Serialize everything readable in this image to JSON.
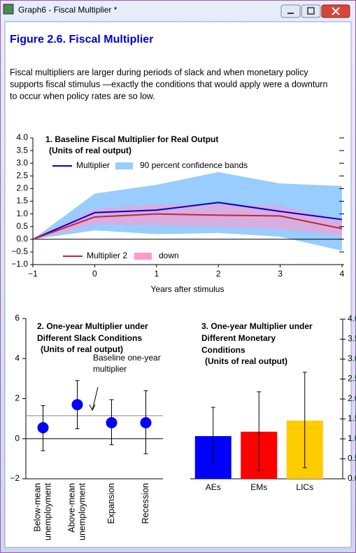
{
  "window": {
    "title": "Graph6 - Fiscal Multiplier *"
  },
  "figure": {
    "title": "Figure 2.6. Fiscal Multiplier",
    "text": [
      "Fiscal multipliers are larger during periods of slack and when monetary policy",
      "supports fiscal stimulus —exactly the conditions that would apply were a downturn",
      "to occur when policy rates are so low."
    ]
  },
  "chart_data": [
    {
      "type": "line",
      "title": "1. Baseline Fiscal Multiplier for Real Output",
      "subtitle": "(Units of real output)",
      "xlabel": "Years after stimulus",
      "x": [
        -1,
        0,
        1,
        2,
        3,
        4
      ],
      "xlim": [
        -1,
        4
      ],
      "xticks": [
        {
          "value": -1,
          "label": "−1"
        },
        0,
        1,
        2,
        3,
        4
      ],
      "ylim": [
        -1,
        4
      ],
      "yticks": [
        {
          "value": 4,
          "label": "4.0"
        },
        {
          "value": 3.5,
          "label": "3.5"
        },
        {
          "value": 3,
          "label": "3.0"
        },
        {
          "value": 2.5,
          "label": "2.5"
        },
        {
          "value": 2,
          "label": "2.0"
        },
        {
          "value": 1.5,
          "label": "1.5"
        },
        {
          "value": 1,
          "label": "1.0"
        },
        {
          "value": 0.5,
          "label": "0.5"
        },
        {
          "value": 0,
          "label": "0.0"
        },
        {
          "value": -0.5,
          "label": "−0.5"
        },
        {
          "value": -1,
          "label": "−1.0"
        }
      ],
      "series": [
        {
          "name": "Multiplier",
          "color": "#0000cc",
          "values": [
            0,
            1.05,
            1.15,
            1.45,
            1.1,
            0.78
          ]
        },
        {
          "name": "90 percent confidence bands",
          "color": "#99ccff",
          "lower": [
            0,
            0.35,
            0.2,
            0.25,
            0.1,
            -0.45
          ],
          "upper": [
            0,
            1.8,
            2.15,
            2.65,
            2.2,
            2.1
          ]
        },
        {
          "name": "Multiplier 2",
          "color": "#cc2233",
          "values": [
            0,
            0.88,
            1.0,
            0.95,
            0.92,
            0.42
          ]
        },
        {
          "name": "down",
          "color": "#ff99cc",
          "lower": [
            0,
            0.6,
            0.55,
            0.5,
            0.4,
            0.15
          ],
          "upper": [
            0,
            1.2,
            1.38,
            1.38,
            1.32,
            0.75
          ]
        }
      ]
    },
    {
      "type": "dot",
      "title": [
        "2. One-year Multiplier under",
        "Different Slack Conditions"
      ],
      "subtitle": "(Units of real output)",
      "categories": [
        [
          "Below-mean",
          "unemployment"
        ],
        [
          "Above-mean",
          "unemployment"
        ],
        [
          "Expansion"
        ],
        [
          "Recession"
        ]
      ],
      "values": [
        0.55,
        1.7,
        0.8,
        0.8
      ],
      "lower": [
        -0.6,
        0.5,
        -0.3,
        -0.75
      ],
      "upper": [
        1.65,
        2.9,
        1.95,
        2.4
      ],
      "color": "#0000ff",
      "ylim": [
        -2,
        6
      ],
      "yticks": [
        {
          "value": -2,
          "label": "−2"
        },
        0,
        2,
        4,
        6
      ],
      "baseline": 1.15,
      "annotation": [
        "Baseline one-year",
        "multiplier"
      ]
    },
    {
      "type": "bar",
      "title": [
        "3. One-year Multiplier under",
        "Different Monetary",
        "Conditions"
      ],
      "subtitle": "(Units of real output)",
      "categories": [
        "AEs",
        "EMs",
        "LICs"
      ],
      "values": [
        1.07,
        1.18,
        1.46
      ],
      "lower": [
        0.37,
        0.21,
        0.28
      ],
      "upper": [
        1.79,
        2.18,
        2.67
      ],
      "colors": [
        "#0000ff",
        "#ff0000",
        "#ffcc00"
      ],
      "ylim": [
        0,
        4
      ],
      "yticks": [
        {
          "value": 0,
          "label": "0.0"
        },
        {
          "value": 0.5,
          "label": "0.5"
        },
        {
          "value": 1,
          "label": "1.0"
        },
        {
          "value": 1.5,
          "label": "1.5"
        },
        {
          "value": 2,
          "label": "2.0"
        },
        {
          "value": 2.5,
          "label": "2.5"
        },
        {
          "value": 3,
          "label": "3.0"
        },
        {
          "value": 3.5,
          "label": "3.5"
        },
        {
          "value": 4,
          "label": "4.0"
        }
      ]
    }
  ]
}
